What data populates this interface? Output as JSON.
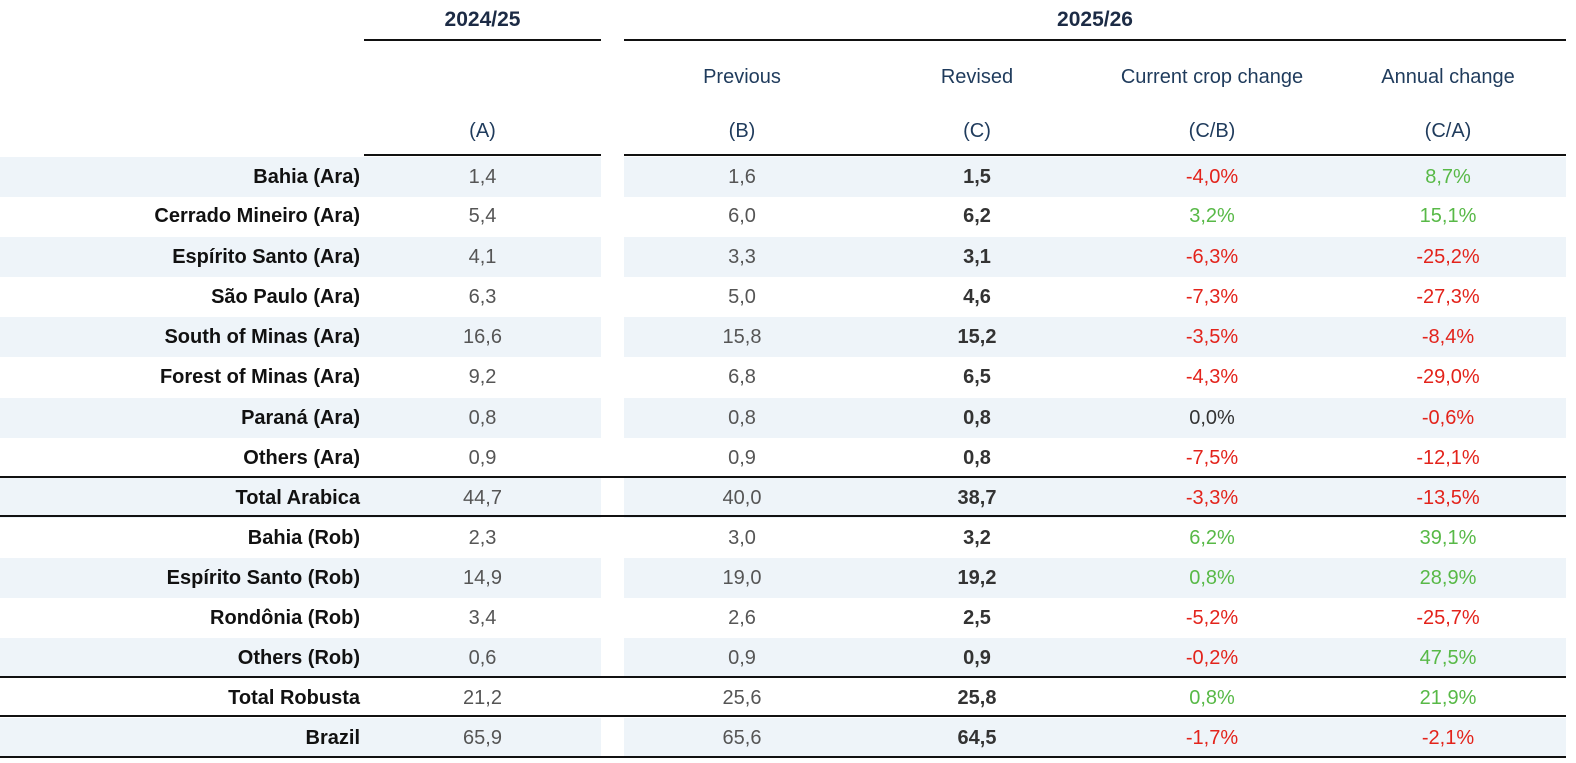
{
  "header": {
    "year_prev": "2024/25",
    "year_curr": "2025/26",
    "col_b_title": "Previous",
    "col_c_title": "Revised",
    "col_d_title": "Current crop change",
    "col_e_title": "Annual change",
    "col_a_code": "(A)",
    "col_b_code": "(B)",
    "col_c_code": "(C)",
    "col_d_code": "(C/B)",
    "col_e_code": "(C/A)"
  },
  "colors": {
    "negative": "#e3231b",
    "positive": "#58b947",
    "neutral": "#333333",
    "shade": "#eef4f9"
  },
  "rows": [
    {
      "label": "Bahia (Ara)",
      "a": "1,4",
      "b": "1,6",
      "c": "1,5",
      "d": "-4,0%",
      "e": "8,7%"
    },
    {
      "label": "Cerrado Mineiro (Ara)",
      "a": "5,4",
      "b": "6,0",
      "c": "6,2",
      "d": "3,2%",
      "e": "15,1%"
    },
    {
      "label": "Espírito Santo (Ara)",
      "a": "4,1",
      "b": "3,3",
      "c": "3,1",
      "d": "-6,3%",
      "e": "-25,2%"
    },
    {
      "label": "São Paulo (Ara)",
      "a": "6,3",
      "b": "5,0",
      "c": "4,6",
      "d": "-7,3%",
      "e": "-27,3%"
    },
    {
      "label": "South of Minas (Ara)",
      "a": "16,6",
      "b": "15,8",
      "c": "15,2",
      "d": "-3,5%",
      "e": "-8,4%"
    },
    {
      "label": "Forest of Minas (Ara)",
      "a": "9,2",
      "b": "6,8",
      "c": "6,5",
      "d": "-4,3%",
      "e": "-29,0%"
    },
    {
      "label": "Paraná (Ara)",
      "a": "0,8",
      "b": "0,8",
      "c": "0,8",
      "d": "0,0%",
      "e": "-0,6%"
    },
    {
      "label": "Others (Ara)",
      "a": "0,9",
      "b": "0,9",
      "c": "0,8",
      "d": "-7,5%",
      "e": "-12,1%"
    },
    {
      "label": "Total Arabica",
      "a": "44,7",
      "b": "40,0",
      "c": "38,7",
      "d": "-3,3%",
      "e": "-13,5%"
    },
    {
      "label": "Bahia (Rob)",
      "a": "2,3",
      "b": "3,0",
      "c": "3,2",
      "d": "6,2%",
      "e": "39,1%"
    },
    {
      "label": "Espírito Santo (Rob)",
      "a": "14,9",
      "b": "19,0",
      "c": "19,2",
      "d": "0,8%",
      "e": "28,9%"
    },
    {
      "label": "Rondônia (Rob)",
      "a": "3,4",
      "b": "2,6",
      "c": "2,5",
      "d": "-5,2%",
      "e": "-25,7%"
    },
    {
      "label": "Others (Rob)",
      "a": "0,6",
      "b": "0,9",
      "c": "0,9",
      "d": "-0,2%",
      "e": "47,5%"
    },
    {
      "label": "Total Robusta",
      "a": "21,2",
      "b": "25,6",
      "c": "25,8",
      "d": "0,8%",
      "e": "21,9%"
    },
    {
      "label": "Brazil",
      "a": "65,9",
      "b": "65,6",
      "c": "64,5",
      "d": "-1,7%",
      "e": "-2,1%"
    }
  ]
}
